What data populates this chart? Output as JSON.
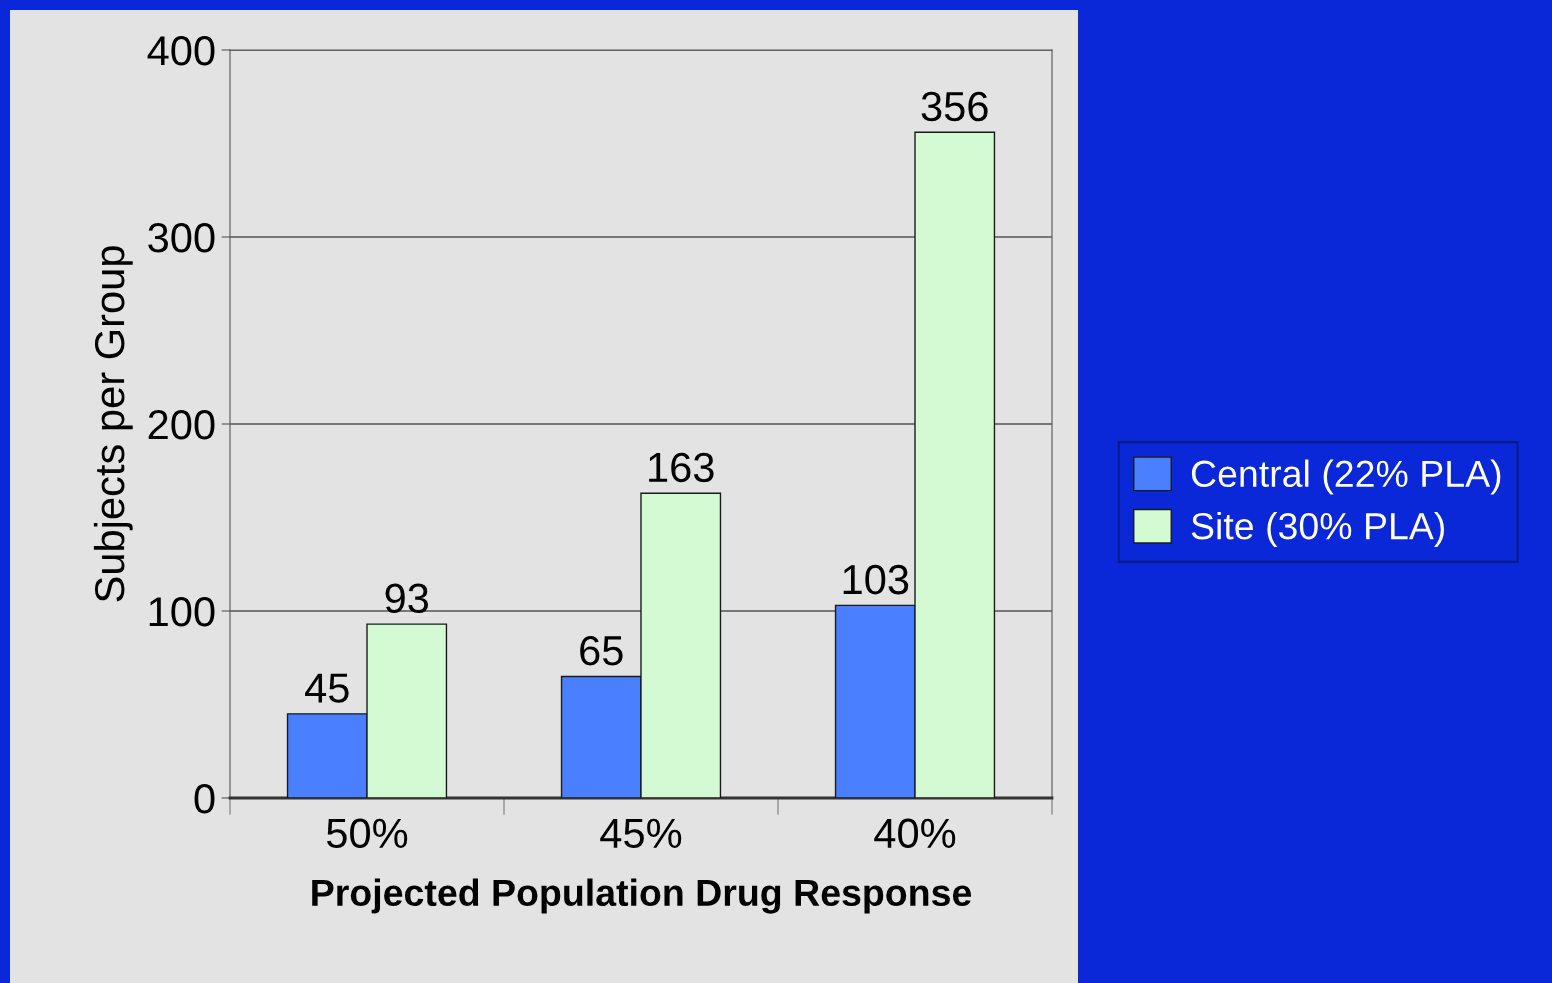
{
  "chart_data": {
    "type": "bar",
    "xlabel": "Projected Population Drug Response",
    "ylabel": "Subjects per Group",
    "categories": [
      "50%",
      "45%",
      "40%"
    ],
    "series": [
      {
        "name": "Central (22% PLA)",
        "color": "#4a80ff",
        "values": [
          45,
          65,
          103
        ]
      },
      {
        "name": "Site (30% PLA)",
        "color": "#d4fad4",
        "values": [
          93,
          163,
          356
        ]
      }
    ],
    "ylim": [
      0,
      400
    ],
    "yticks": [
      0,
      100,
      200,
      300,
      400
    ],
    "grid": "y",
    "legend": "right",
    "data_labels": true
  }
}
